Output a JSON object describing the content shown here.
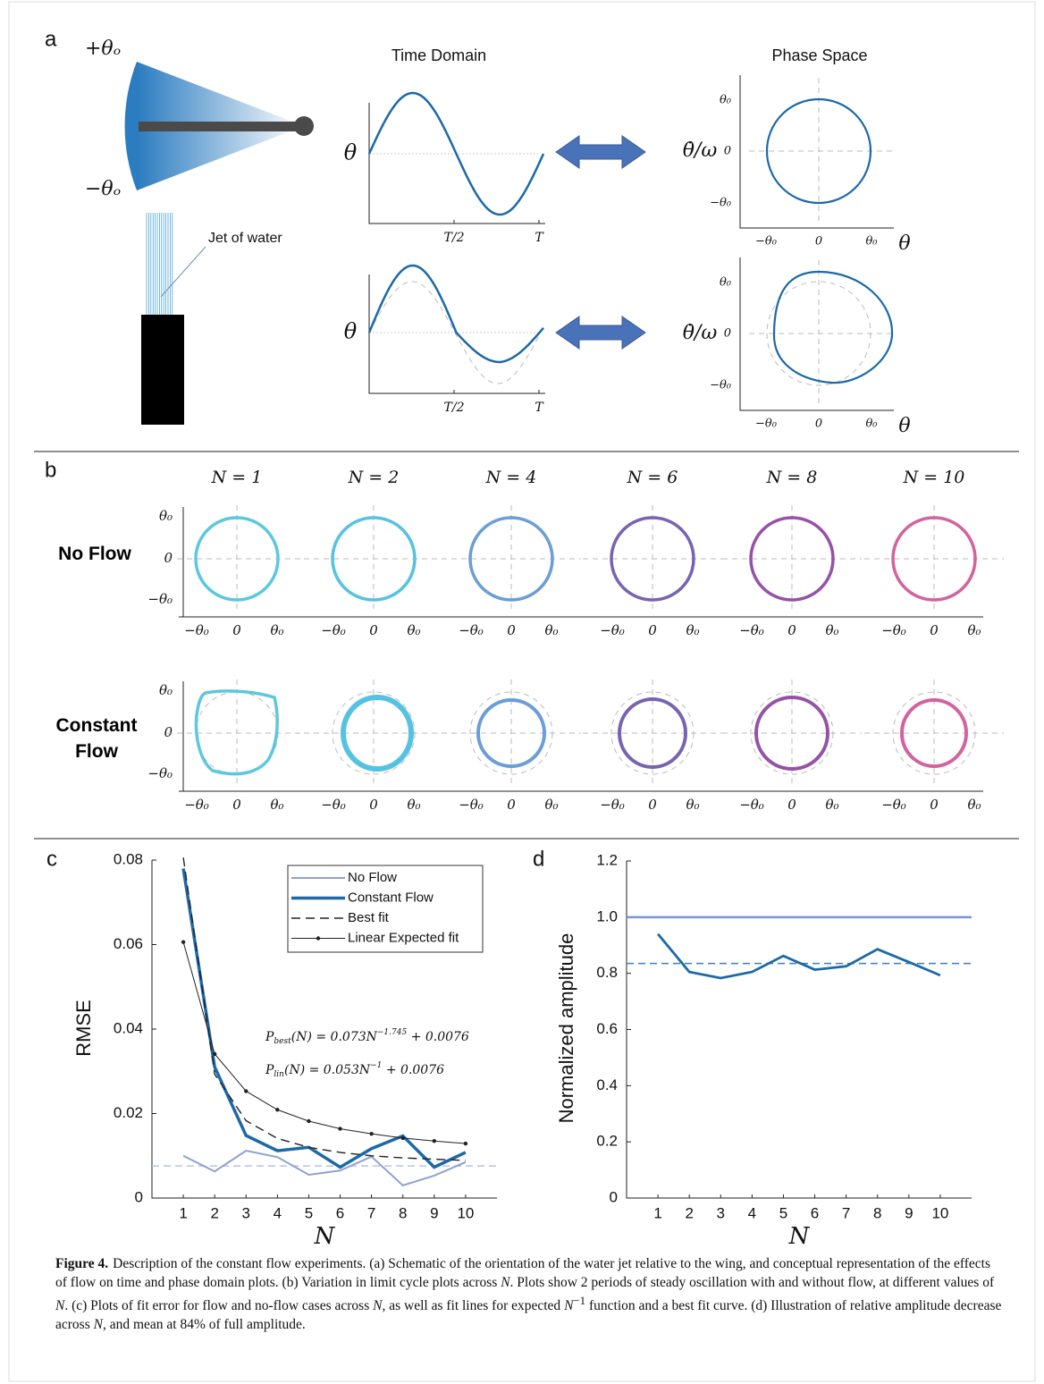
{
  "panel_labels": [
    "a",
    "b",
    "c",
    "d"
  ],
  "panel_a": {
    "angle_plus": "+θₒ",
    "angle_minus": "−θₒ",
    "jet_label": "Jet of water",
    "time_title": "Time Domain",
    "phase_title": "Phase Space",
    "time_ylabel": "θ",
    "time_xticks": [
      "T/2",
      "T"
    ],
    "phase_ylabel": "θ̇/ω",
    "phase_xlabel": "θ",
    "phase_ticks": [
      "−θ₀",
      "0",
      "θ₀"
    ]
  },
  "panel_b": {
    "columns": [
      {
        "label": "N = 1",
        "color": "#5cc8de"
      },
      {
        "label": "N = 2",
        "color": "#55c2e2"
      },
      {
        "label": "N = 4",
        "color": "#6b9dd6"
      },
      {
        "label": "N = 6",
        "color": "#7763b2"
      },
      {
        "label": "N = 8",
        "color": "#9552a8"
      },
      {
        "label": "N = 10",
        "color": "#d3639f"
      }
    ],
    "rows": [
      "No Flow",
      "Constant Flow"
    ],
    "ticks": [
      "−θ₀",
      "0",
      "θ₀"
    ]
  },
  "chart_data": [
    {
      "type": "line",
      "x": [
        1,
        2,
        3,
        4,
        5,
        6,
        7,
        8,
        9,
        10
      ],
      "xlim": [
        0,
        11
      ],
      "xticks": [
        1,
        2,
        3,
        4,
        5,
        6,
        7,
        8,
        9,
        10
      ],
      "ylim": [
        0,
        0.08
      ],
      "yticks": [
        0,
        0.02,
        0.04,
        0.06,
        0.08
      ],
      "xlabel": "N",
      "ylabel": "RMSE",
      "series": [
        {
          "name": "No Flow",
          "color": "#8da1d3",
          "values": [
            0.01,
            0.0063,
            0.0112,
            0.0097,
            0.0055,
            0.0065,
            0.0098,
            0.003,
            0.0053,
            0.0085
          ]
        },
        {
          "name": "Constant Flow",
          "color": "#1c69a8",
          "values": [
            0.078,
            0.031,
            0.0148,
            0.0112,
            0.012,
            0.0073,
            0.0117,
            0.0147,
            0.0073,
            0.0108
          ]
        },
        {
          "name": "Best fit",
          "color": "#222222",
          "dash": true,
          "values": [
            0.0806,
            0.0293,
            0.0183,
            0.0141,
            0.012,
            0.0108,
            0.01,
            0.0095,
            0.0092,
            0.0089
          ]
        },
        {
          "name": "Linear Expected fit",
          "color": "#222222",
          "marker": true,
          "values": [
            0.0606,
            0.0341,
            0.0253,
            0.0209,
            0.0182,
            0.0164,
            0.0152,
            0.0142,
            0.0135,
            0.0129
          ]
        }
      ],
      "reference_lines": [
        {
          "value": 0.0076,
          "color": "#b8c3e2",
          "dash": true
        }
      ],
      "legend": "upper right",
      "annotations": [
        [
          "P",
          "best",
          "(N) = 0.073N",
          "−1.745",
          " + 0.0076"
        ],
        [
          "P",
          "lin",
          "(N) = 0.053N",
          "−1",
          " + 0.0076"
        ]
      ]
    },
    {
      "type": "line",
      "x": [
        1,
        2,
        3,
        4,
        5,
        6,
        7,
        8,
        9,
        10
      ],
      "xlim": [
        0,
        11
      ],
      "xticks": [
        1,
        2,
        3,
        4,
        5,
        6,
        7,
        8,
        9,
        10
      ],
      "ylim": [
        0,
        1.2
      ],
      "yticks": [
        0,
        0.2,
        0.4,
        0.6,
        0.8,
        {
          "value": 1,
          "label": "1.0"
        },
        1.2
      ],
      "xlabel": "N",
      "ylabel": "Normalized amplitude",
      "series": [
        {
          "color": "#1c69a8",
          "values": [
            0.94,
            0.805,
            0.783,
            0.805,
            0.862,
            0.813,
            0.825,
            0.886,
            0.84,
            0.793
          ]
        }
      ],
      "reference_lines": [
        {
          "value": 1,
          "color": "#7a95cf"
        },
        {
          "value": 0.835,
          "color": "#3a80c0",
          "dash": true
        }
      ]
    }
  ],
  "caption": {
    "label": "Figure 4.",
    "segments": [
      "Description of the constant flow experiments. (a) Schematic of the orientation of the water jet relative to the wing, and conceptual representation of the effects of flow on time and phase domain plots. (b) Variation in limit cycle plots across ",
      {
        "text": "N",
        "style": "italic"
      },
      ". Plots show 2 periods of steady oscillation with and without flow, at different values of ",
      {
        "text": "N",
        "style": "italic"
      },
      ". (c) Plots of fit error for flow and no-flow cases across ",
      {
        "text": "N",
        "style": "italic"
      },
      ", as well as fit lines for expected ",
      {
        "text": "N",
        "style": "italic"
      },
      {
        "text": "−1",
        "style": "sup"
      },
      " function and a best fit curve. (d) Illustration of relative amplitude decrease across ",
      {
        "text": "N",
        "style": "italic"
      },
      ", and mean at 84% of full amplitude."
    ]
  }
}
